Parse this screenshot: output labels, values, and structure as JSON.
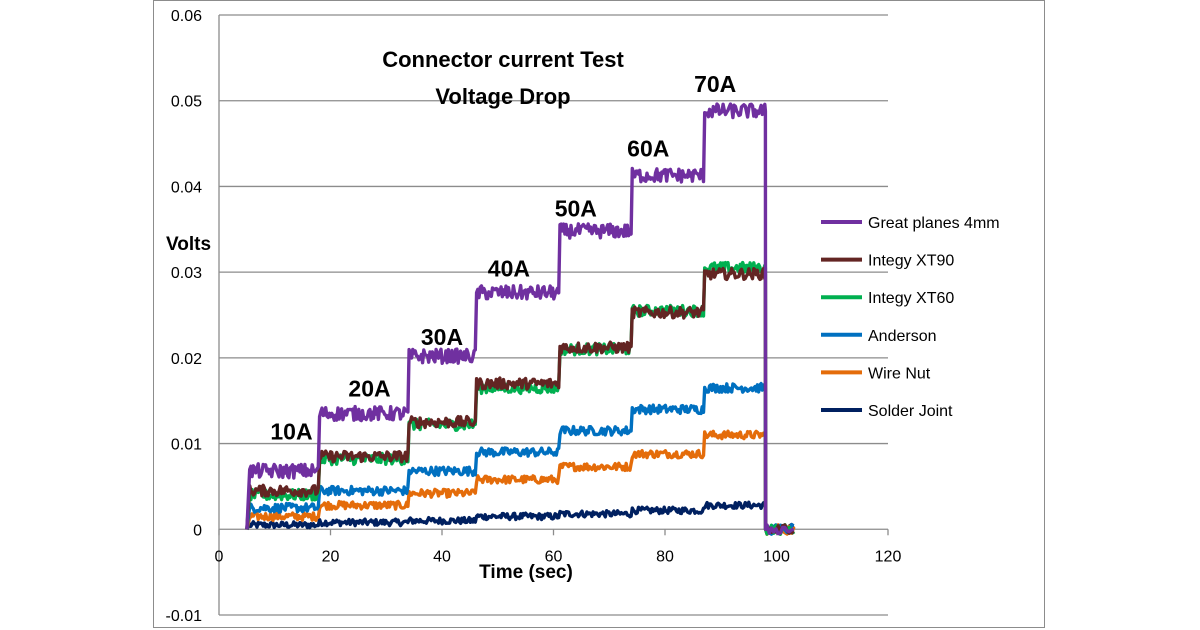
{
  "chart_data": {
    "type": "line",
    "title": [
      "Connector current Test",
      "Voltage Drop"
    ],
    "xlabel": "Time (sec)",
    "ylabel": "Volts",
    "xlim": [
      0,
      120
    ],
    "ylim": [
      -0.01,
      0.06
    ],
    "x_ticks": [
      "0",
      "20",
      "40",
      "60",
      "80",
      "100",
      "120"
    ],
    "y_ticks": [
      "-0.01",
      "0",
      "0.01",
      "0.02",
      "0.03",
      "0.04",
      "0.05",
      "0.06"
    ],
    "grid": "horizontal",
    "legend_position": "right",
    "step_times": [
      5.5,
      18,
      34,
      46,
      61,
      74,
      87,
      98
    ],
    "annotations": [
      {
        "text": "10A",
        "x": 13,
        "y": 0.0105
      },
      {
        "text": "20A",
        "x": 27,
        "y": 0.0155
      },
      {
        "text": "30A",
        "x": 40,
        "y": 0.0215
      },
      {
        "text": "40A",
        "x": 52,
        "y": 0.0295
      },
      {
        "text": "50A",
        "x": 64,
        "y": 0.0365
      },
      {
        "text": "60A",
        "x": 77,
        "y": 0.0435
      },
      {
        "text": "70A",
        "x": 89,
        "y": 0.051
      }
    ],
    "series": [
      {
        "name": "Great planes 4mm",
        "color": "#7030a0",
        "step_values": [
          0.0068,
          0.0135,
          0.0202,
          0.0276,
          0.0348,
          0.0413,
          0.0488
        ]
      },
      {
        "name": "Integy XT90",
        "color": "#632523",
        "step_values": [
          0.0045,
          0.0085,
          0.0125,
          0.017,
          0.0212,
          0.0253,
          0.0298
        ]
      },
      {
        "name": "Integy XT60",
        "color": "#00b050",
        "step_values": [
          0.004,
          0.0082,
          0.0122,
          0.0165,
          0.021,
          0.0255,
          0.0305
        ]
      },
      {
        "name": "Anderson",
        "color": "#0070c0",
        "step_values": [
          0.0025,
          0.0045,
          0.0068,
          0.009,
          0.0115,
          0.014,
          0.0165
        ]
      },
      {
        "name": "Wire Nut",
        "color": "#e46c0a",
        "step_values": [
          0.0015,
          0.0028,
          0.0042,
          0.0058,
          0.0073,
          0.0088,
          0.011
        ]
      },
      {
        "name": "Solder Joint",
        "color": "#002060",
        "step_values": [
          0.0005,
          0.0008,
          0.001,
          0.0015,
          0.0018,
          0.0022,
          0.0028
        ]
      }
    ]
  }
}
